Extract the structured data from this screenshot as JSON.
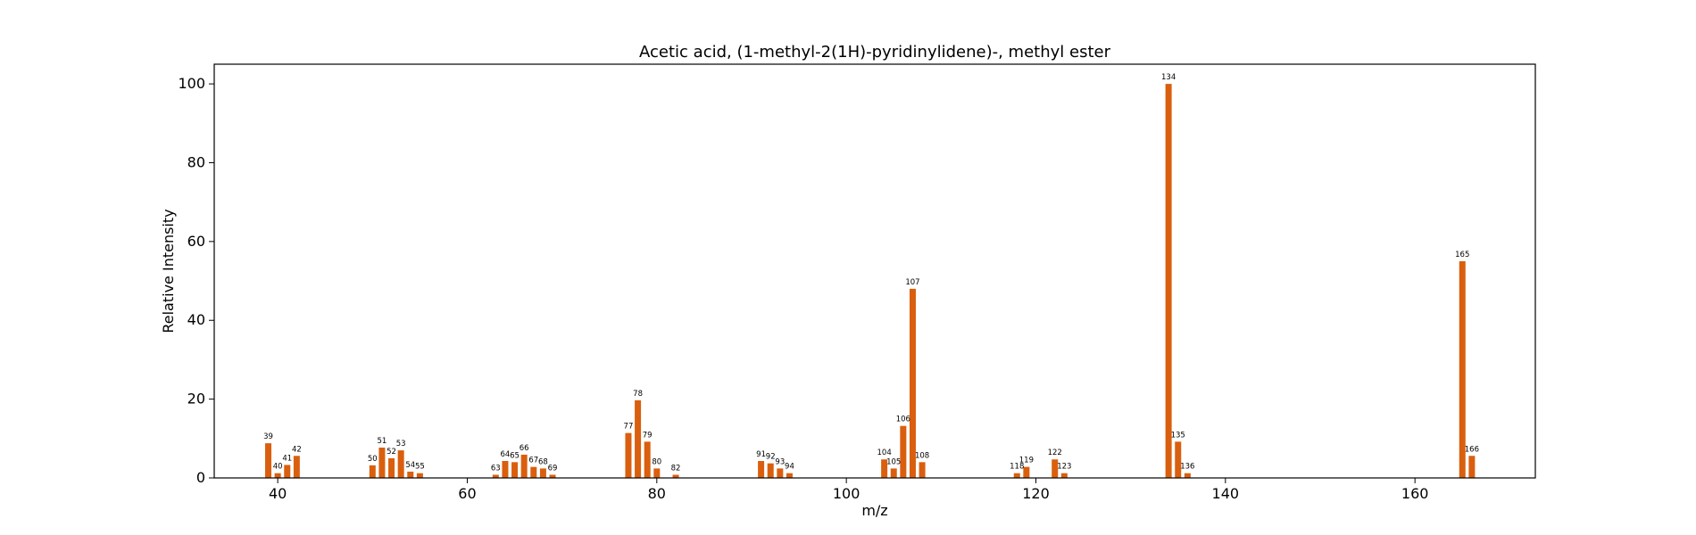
{
  "chart_data": {
    "type": "bar",
    "title": "Acetic acid, (1-methyl-2(1H)-pyridinylidene)-, methyl ester",
    "xlabel": "m/z",
    "ylabel": "Relative Intensity",
    "xlim": [
      33.3,
      172.7
    ],
    "ylim": [
      0,
      105
    ],
    "xticks": [
      40,
      60,
      80,
      100,
      120,
      140,
      160
    ],
    "yticks": [
      0,
      20,
      40,
      60,
      80,
      100
    ],
    "bar_color": "#d95f0e",
    "grid": false,
    "legend": "none",
    "peaks": [
      {
        "mz": 39,
        "intensity": 8.8,
        "label": "39"
      },
      {
        "mz": 40,
        "intensity": 1.2,
        "label": "40"
      },
      {
        "mz": 41,
        "intensity": 3.3,
        "label": "41"
      },
      {
        "mz": 42,
        "intensity": 5.6,
        "label": "42"
      },
      {
        "mz": 50,
        "intensity": 3.2,
        "label": "50"
      },
      {
        "mz": 51,
        "intensity": 7.7,
        "label": "51"
      },
      {
        "mz": 52,
        "intensity": 5.0,
        "label": "52"
      },
      {
        "mz": 53,
        "intensity": 7.0,
        "label": "53"
      },
      {
        "mz": 54,
        "intensity": 1.6,
        "label": "54"
      },
      {
        "mz": 55,
        "intensity": 1.2,
        "label": "55"
      },
      {
        "mz": 63,
        "intensity": 0.8,
        "label": "63"
      },
      {
        "mz": 64,
        "intensity": 4.3,
        "label": "64"
      },
      {
        "mz": 65,
        "intensity": 4.0,
        "label": "65"
      },
      {
        "mz": 66,
        "intensity": 5.9,
        "label": "66"
      },
      {
        "mz": 67,
        "intensity": 2.8,
        "label": "67"
      },
      {
        "mz": 68,
        "intensity": 2.4,
        "label": "68"
      },
      {
        "mz": 69,
        "intensity": 0.8,
        "label": "69"
      },
      {
        "mz": 77,
        "intensity": 11.4,
        "label": "77"
      },
      {
        "mz": 78,
        "intensity": 19.7,
        "label": "78"
      },
      {
        "mz": 79,
        "intensity": 9.2,
        "label": "79"
      },
      {
        "mz": 80,
        "intensity": 2.4,
        "label": "80"
      },
      {
        "mz": 82,
        "intensity": 0.8,
        "label": "82"
      },
      {
        "mz": 91,
        "intensity": 4.3,
        "label": "91"
      },
      {
        "mz": 92,
        "intensity": 3.7,
        "label": "92"
      },
      {
        "mz": 93,
        "intensity": 2.4,
        "label": "93"
      },
      {
        "mz": 94,
        "intensity": 1.2,
        "label": "94"
      },
      {
        "mz": 104,
        "intensity": 4.7,
        "label": "104"
      },
      {
        "mz": 105,
        "intensity": 2.4,
        "label": "105"
      },
      {
        "mz": 106,
        "intensity": 13.2,
        "label": "106"
      },
      {
        "mz": 107,
        "intensity": 48.0,
        "label": "107"
      },
      {
        "mz": 108,
        "intensity": 4.0,
        "label": "108"
      },
      {
        "mz": 118,
        "intensity": 1.2,
        "label": "118"
      },
      {
        "mz": 119,
        "intensity": 2.8,
        "label": "119"
      },
      {
        "mz": 122,
        "intensity": 4.7,
        "label": "122"
      },
      {
        "mz": 123,
        "intensity": 1.2,
        "label": "123"
      },
      {
        "mz": 134,
        "intensity": 100.0,
        "label": "134"
      },
      {
        "mz": 135,
        "intensity": 9.2,
        "label": "135"
      },
      {
        "mz": 136,
        "intensity": 1.2,
        "label": "136"
      },
      {
        "mz": 165,
        "intensity": 55.0,
        "label": "165"
      },
      {
        "mz": 166,
        "intensity": 5.6,
        "label": "166"
      }
    ]
  }
}
